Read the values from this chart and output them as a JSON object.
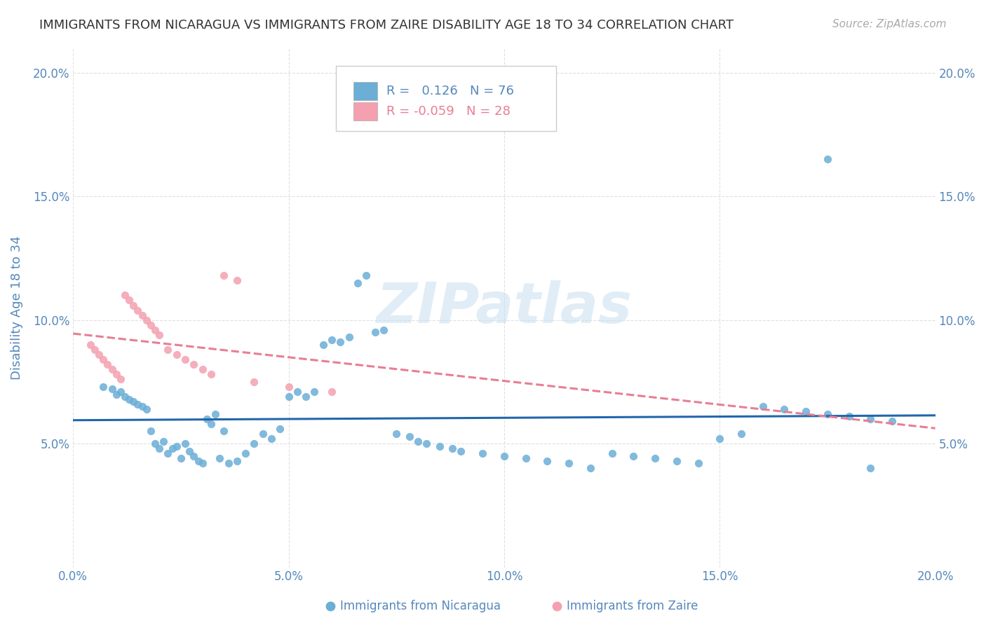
{
  "title": "IMMIGRANTS FROM NICARAGUA VS IMMIGRANTS FROM ZAIRE DISABILITY AGE 18 TO 34 CORRELATION CHART",
  "source": "Source: ZipAtlas.com",
  "ylabel": "Disability Age 18 to 34",
  "xlim": [
    0.0,
    0.2
  ],
  "ylim": [
    0.0,
    0.21
  ],
  "xticks": [
    0.0,
    0.05,
    0.1,
    0.15,
    0.2
  ],
  "yticks": [
    0.0,
    0.05,
    0.1,
    0.15,
    0.2
  ],
  "nicaragua_color": "#6baed6",
  "zaire_color": "#f4a0b0",
  "nicaragua_line_color": "#2166ac",
  "zaire_line_color": "#e87e94",
  "R_nicaragua": 0.126,
  "N_nicaragua": 76,
  "R_zaire": -0.059,
  "N_zaire": 28,
  "watermark": "ZIPatlas",
  "background_color": "#ffffff",
  "grid_color": "#dddddd",
  "title_color": "#333333",
  "axis_color": "#5588bb",
  "tick_color": "#5588bb",
  "nicaragua_x": [
    0.007,
    0.009,
    0.01,
    0.011,
    0.012,
    0.013,
    0.014,
    0.015,
    0.016,
    0.017,
    0.018,
    0.019,
    0.02,
    0.021,
    0.022,
    0.023,
    0.024,
    0.025,
    0.026,
    0.027,
    0.028,
    0.029,
    0.03,
    0.031,
    0.032,
    0.033,
    0.034,
    0.035,
    0.036,
    0.038,
    0.04,
    0.042,
    0.044,
    0.046,
    0.048,
    0.05,
    0.052,
    0.054,
    0.056,
    0.058,
    0.06,
    0.062,
    0.064,
    0.066,
    0.068,
    0.07,
    0.072,
    0.075,
    0.078,
    0.08,
    0.082,
    0.085,
    0.088,
    0.09,
    0.095,
    0.1,
    0.105,
    0.11,
    0.115,
    0.12,
    0.125,
    0.13,
    0.135,
    0.14,
    0.145,
    0.15,
    0.155,
    0.16,
    0.165,
    0.17,
    0.175,
    0.18,
    0.185,
    0.19,
    0.175,
    0.185
  ],
  "nicaragua_y": [
    0.073,
    0.072,
    0.07,
    0.071,
    0.069,
    0.068,
    0.067,
    0.066,
    0.065,
    0.064,
    0.055,
    0.05,
    0.048,
    0.051,
    0.046,
    0.048,
    0.049,
    0.044,
    0.05,
    0.047,
    0.045,
    0.043,
    0.042,
    0.06,
    0.058,
    0.062,
    0.044,
    0.055,
    0.042,
    0.043,
    0.046,
    0.05,
    0.054,
    0.052,
    0.056,
    0.069,
    0.071,
    0.069,
    0.071,
    0.09,
    0.092,
    0.091,
    0.093,
    0.115,
    0.118,
    0.095,
    0.096,
    0.054,
    0.053,
    0.051,
    0.05,
    0.049,
    0.048,
    0.047,
    0.046,
    0.045,
    0.044,
    0.043,
    0.042,
    0.04,
    0.046,
    0.045,
    0.044,
    0.043,
    0.042,
    0.052,
    0.054,
    0.065,
    0.064,
    0.063,
    0.062,
    0.061,
    0.06,
    0.059,
    0.165,
    0.04
  ],
  "zaire_x": [
    0.004,
    0.005,
    0.006,
    0.007,
    0.008,
    0.009,
    0.01,
    0.011,
    0.012,
    0.013,
    0.014,
    0.015,
    0.016,
    0.017,
    0.018,
    0.019,
    0.02,
    0.022,
    0.024,
    0.026,
    0.028,
    0.03,
    0.032,
    0.035,
    0.038,
    0.042,
    0.05,
    0.06
  ],
  "zaire_y": [
    0.09,
    0.088,
    0.086,
    0.084,
    0.082,
    0.08,
    0.078,
    0.076,
    0.11,
    0.108,
    0.106,
    0.104,
    0.102,
    0.1,
    0.098,
    0.096,
    0.094,
    0.088,
    0.086,
    0.084,
    0.082,
    0.08,
    0.078,
    0.118,
    0.116,
    0.075,
    0.073,
    0.071
  ]
}
